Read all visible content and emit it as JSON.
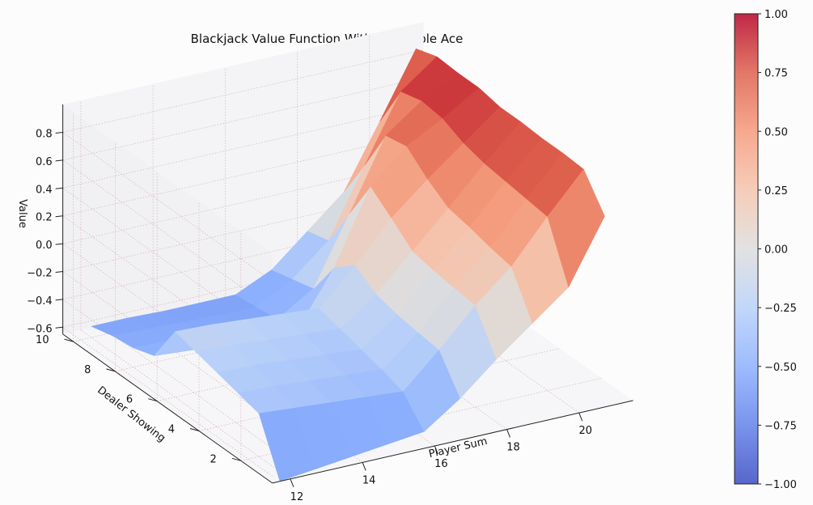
{
  "chart_data": {
    "type": "surface3d",
    "title": "Blackjack Value Function Without Usable Ace",
    "xlabel": "Player Sum",
    "ylabel": "Dealer Showing",
    "zlabel": "Value",
    "x": [
      12,
      13,
      14,
      15,
      16,
      17,
      18,
      19,
      20,
      21
    ],
    "y": [
      1,
      2,
      3,
      4,
      5,
      6,
      7,
      8,
      9,
      10
    ],
    "xticks": [
      "12",
      "14",
      "16",
      "18",
      "20"
    ],
    "yticks": [
      "2",
      "4",
      "6",
      "8",
      "10"
    ],
    "zticks": [
      "−0.6",
      "−0.4",
      "−0.2",
      "0.0",
      "0.2",
      "0.4",
      "0.6",
      "0.8"
    ],
    "zlim": [
      -0.65,
      1.0
    ],
    "grid": true,
    "colormap": "coolwarm",
    "colorbar": {
      "ticks": [
        "1.00",
        "0.75",
        "0.50",
        "0.25",
        "0.00",
        "−0.25",
        "−0.50",
        "−0.75",
        "−1.00"
      ],
      "range": [
        -1.0,
        1.0
      ]
    },
    "z": [
      [
        -0.72,
        -0.69,
        -0.66,
        -0.63,
        -0.6,
        -0.42,
        -0.2,
        0.0,
        0.2,
        0.65
      ],
      [
        -0.34,
        -0.36,
        -0.38,
        -0.4,
        -0.42,
        -0.18,
        0.08,
        0.3,
        0.6,
        0.88
      ],
      [
        -0.3,
        -0.31,
        -0.33,
        -0.35,
        -0.37,
        -0.16,
        0.1,
        0.33,
        0.62,
        0.89
      ],
      [
        -0.26,
        -0.27,
        -0.29,
        -0.31,
        -0.33,
        -0.14,
        0.12,
        0.37,
        0.64,
        0.89
      ],
      [
        -0.22,
        -0.23,
        -0.25,
        -0.27,
        -0.29,
        -0.1,
        0.15,
        0.4,
        0.66,
        0.9
      ],
      [
        -0.18,
        -0.19,
        -0.21,
        -0.23,
        -0.25,
        0.0,
        0.28,
        0.5,
        0.7,
        0.9
      ],
      [
        -0.46,
        -0.48,
        -0.49,
        -0.5,
        -0.5,
        -0.12,
        0.4,
        0.63,
        0.77,
        0.93
      ],
      [
        -0.51,
        -0.52,
        -0.53,
        -0.54,
        -0.54,
        -0.38,
        0.1,
        0.6,
        0.79,
        0.93
      ],
      [
        -0.53,
        -0.54,
        -0.55,
        -0.56,
        -0.56,
        -0.42,
        -0.2,
        0.28,
        0.75,
        0.94
      ],
      [
        -0.57,
        -0.57,
        -0.58,
        -0.58,
        -0.58,
        -0.46,
        -0.24,
        -0.02,
        0.43,
        0.89
      ]
    ]
  }
}
